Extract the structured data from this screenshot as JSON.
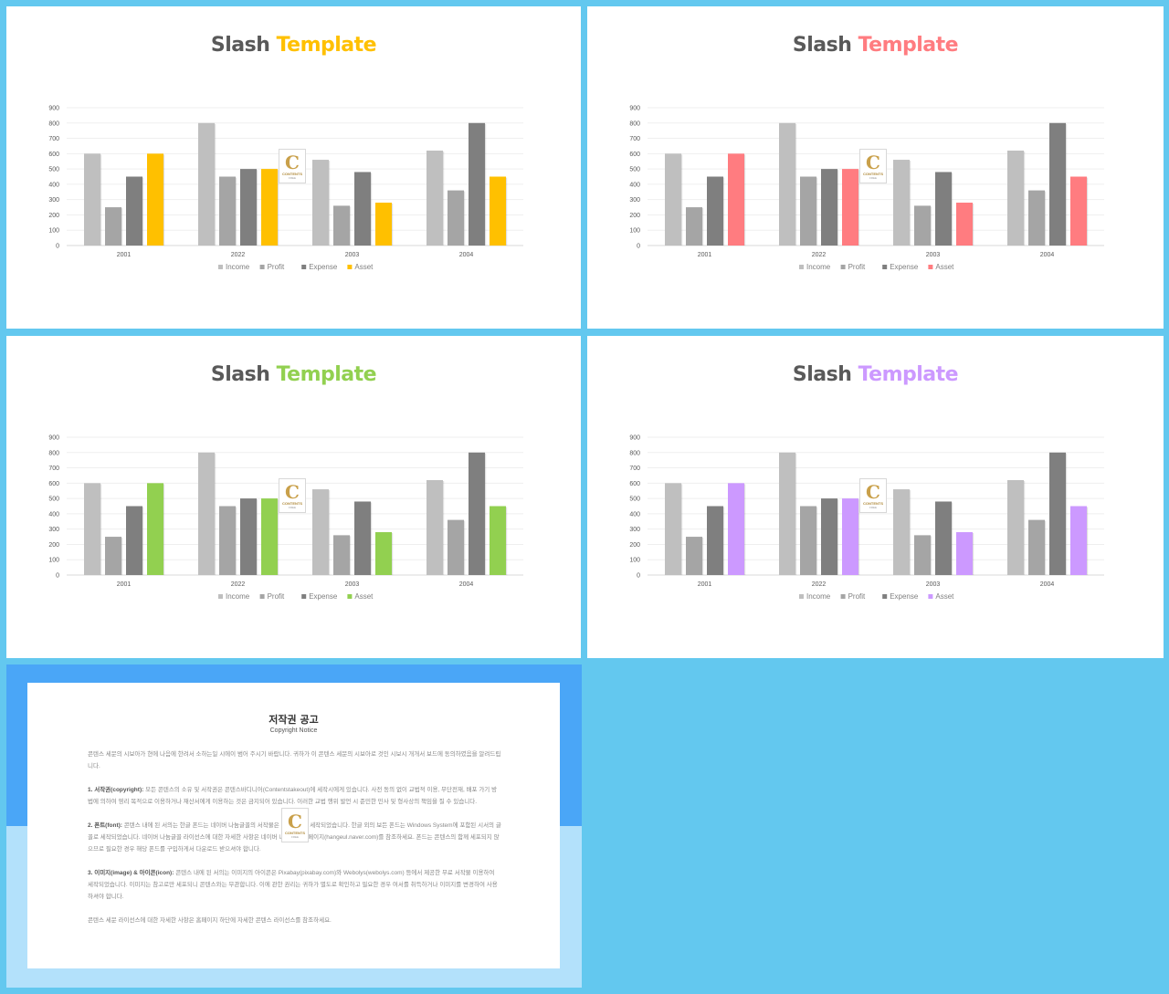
{
  "colors": {
    "background": "#63c8ef",
    "income": "#bfbfbf",
    "profit": "#a5a5a5",
    "expense": "#7f7f7f",
    "grid": "#efefef"
  },
  "slides": [
    {
      "title_part1": "Slash",
      "title_part2": "Template",
      "accent": "#ffc000"
    },
    {
      "title_part1": "Slash",
      "title_part2": "Template",
      "accent": "#ff7c80"
    },
    {
      "title_part1": "Slash",
      "title_part2": "Template",
      "accent": "#92d050"
    },
    {
      "title_part1": "Slash",
      "title_part2": "Template",
      "accent": "#cc99ff"
    }
  ],
  "stamp": {
    "letter": "C",
    "text": "CONTENTS",
    "sub": "FREE"
  },
  "chart_data": {
    "type": "bar",
    "categories": [
      "2001",
      "2022",
      "2003",
      "2004"
    ],
    "ylim": [
      0,
      900
    ],
    "yticks": [
      0,
      100,
      200,
      300,
      400,
      500,
      600,
      700,
      800,
      900
    ],
    "grid": true,
    "legend_position": "bottom",
    "series": [
      {
        "name": "Income",
        "values": [
          600,
          800,
          560,
          620
        ]
      },
      {
        "name": "Profit",
        "values": [
          250,
          450,
          260,
          360
        ]
      },
      {
        "name": "Expense",
        "values": [
          450,
          500,
          480,
          800
        ]
      },
      {
        "name": "Asset",
        "values": [
          600,
          500,
          280,
          450
        ]
      }
    ]
  },
  "copyright": {
    "title": "저작권 공고",
    "subtitle": "Copyright Notice",
    "intro": "콘텐스 세문의 시보아가 현에 나음에 한려서 소하는일 시에이 범어 주시기 바랍니다. 귀하가 이 콘텐스 세문의 시보아로 것인 시보시 개개서 보드에 동의하였음을 알려드립니다.",
    "p1_head": "1. 서작권(copyright):",
    "p1_body": "모든 콘텐스의 소유 및 서작권은 콘텐스바디니어(Contentstakeout)에 세작시에게 있습니다. 사전 동의 없이 교법적 이용, 무단전재, 배포 가기 방법에 의하여 영리 목적으로 이용하거나 재산서에게 이용하는 것은 금지되어 있습니다. 이러한 교법 행위 발언 시 준민한 민사 및 형사상의 책임을 질 수 있습니다.",
    "p2_head": "2. 폰트(font):",
    "p2_body": "콘텐스 내에 된 서의는 한글 폰드는 네이버 나눔글꼴의 서작물은 네이버에서 세작되었습니다. 한글 외의 보든 폰드는 Windows System에 포함된 시서의 글꼴로 세작되었습니다. 네이버 나눔글꼴 라이선스에 대한 자세한 사항은 네이버 나눔글꼴 홈페이지(hangeul.naver.com)를 참조하세요. 폰드는 콘텐스의 함께 세포되지 않으므로 필요한 경우 해당 폰드를 구입하게서 다운로드 받으셔야 합니다.",
    "p3_head": "3. 이미지(image) & 아이콘(icon):",
    "p3_body": "콘텐스 내에 된 서의는 이미지의 아이콘은 Pixabay(pixabay.com)와 Webolys(webolys.com) 등에서 제공한 무료 서작물 이용하여 세작되었습니다. 이미지는 참고로만 세포되니 콘텐스와는 무관합니다. 이에 관한 권리는 귀하가 별도로 확인하고 필요한 경우 여서를 취득하거나 이미지를 변경하여 사용하셔야 합니다.",
    "outro": "콘텐스 세문 라이선스에 대한 자세한 사항은 홈페이지 하단에 자세한 콘텐스 라이선스를 참조하세요."
  }
}
